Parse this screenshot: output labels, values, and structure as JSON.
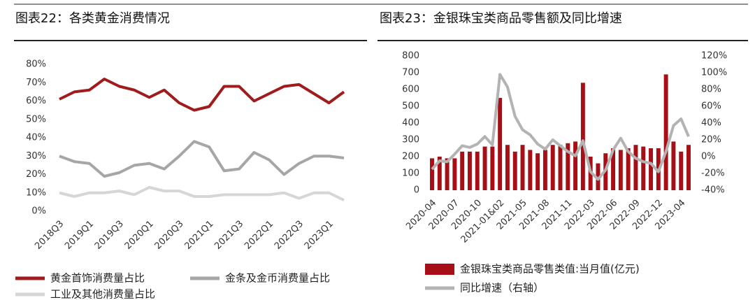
{
  "chart_data": [
    {
      "type": "line",
      "title": "图表22：各类黄金消费情况",
      "categories": [
        "2018Q3",
        null,
        "2019Q1",
        null,
        "2019Q3",
        null,
        "2020Q1",
        null,
        "2020Q3",
        null,
        "2021Q1",
        null,
        "2021Q3",
        null,
        "2022Q1",
        null,
        "2022Q3",
        null,
        "2023Q1",
        null
      ],
      "series": [
        {
          "name": "黄金首饰消费量占比",
          "color": "#a01c1c",
          "values": [
            61,
            65,
            66,
            72,
            68,
            66,
            62,
            66,
            59,
            55,
            57,
            68,
            68,
            60,
            64,
            68,
            69,
            64,
            59,
            65
          ]
        },
        {
          "name": "金条及金币消费量占比",
          "color": "#a6a6a6",
          "values": [
            30,
            27,
            26,
            19,
            21,
            25,
            26,
            23,
            30,
            38,
            35,
            22,
            23,
            32,
            28,
            20,
            26,
            30,
            30,
            29
          ]
        },
        {
          "name": "工业及其他消费量占比",
          "color": "#d6d6d6",
          "values": [
            10,
            8,
            10,
            10,
            11,
            9,
            13,
            11,
            11,
            8,
            8,
            9,
            9,
            9,
            9,
            10,
            7,
            10,
            10,
            6
          ]
        }
      ],
      "ylim": [
        0,
        80
      ],
      "yticks": [
        {
          "value": 0,
          "label": "0%"
        },
        {
          "value": 10,
          "label": "10%"
        },
        {
          "value": 20,
          "label": "20%"
        },
        {
          "value": 30,
          "label": "30%"
        },
        {
          "value": 40,
          "label": "40%"
        },
        {
          "value": 50,
          "label": "50%"
        },
        {
          "value": 60,
          "label": "60%"
        },
        {
          "value": 70,
          "label": "70%"
        },
        {
          "value": 80,
          "label": "80%"
        }
      ]
    },
    {
      "type": "bar",
      "title": "图表23：金银珠宝类商品零售额及同比增速",
      "categories": [
        "2020-04",
        null,
        null,
        "2020-07",
        null,
        null,
        "2020-10",
        null,
        null,
        "2021-01&02",
        null,
        null,
        "2021-05",
        null,
        null,
        "2021-08",
        null,
        null,
        "2021-11",
        null,
        null,
        "2022-03",
        null,
        null,
        "2022-06",
        null,
        null,
        "2022-09",
        null,
        null,
        "2022-12",
        null,
        null,
        "2023-04",
        null
      ],
      "series": [
        {
          "name": "金银珠宝类商品零售类值:当月值(亿元)",
          "type": "bar",
          "color": "#a50f15",
          "values": [
            190,
            200,
            190,
            190,
            230,
            230,
            230,
            260,
            260,
            550,
            270,
            230,
            270,
            240,
            220,
            240,
            270,
            270,
            280,
            290,
            640,
            200,
            160,
            220,
            250,
            240,
            250,
            270,
            260,
            250,
            250,
            690,
            290,
            230,
            270
          ]
        },
        {
          "name": "同比增速（右轴）",
          "type": "line",
          "axis": "y2",
          "color": "#b3b3b3",
          "values": [
            -15,
            -5,
            -6,
            3,
            13,
            11,
            15,
            24,
            14,
            98,
            83,
            48,
            32,
            26,
            15,
            9,
            20,
            13,
            6,
            1,
            19,
            -18,
            -27,
            -16,
            8,
            22,
            6,
            -2,
            -6,
            -8,
            -18,
            6,
            37,
            45,
            24
          ]
        }
      ],
      "ylim": [
        0,
        800
      ],
      "yticks": [
        0,
        100,
        200,
        300,
        400,
        500,
        600,
        700,
        800
      ],
      "y2lim": [
        -40,
        120
      ],
      "y2ticks": [
        {
          "value": -40,
          "label": "-40%"
        },
        {
          "value": -20,
          "label": "-20%"
        },
        {
          "value": 0,
          "label": "0%"
        },
        {
          "value": 20,
          "label": "20%"
        },
        {
          "value": 40,
          "label": "40%"
        },
        {
          "value": 60,
          "label": "60%"
        },
        {
          "value": 80,
          "label": "80%"
        },
        {
          "value": 100,
          "label": "100%"
        },
        {
          "value": 120,
          "label": "120%"
        }
      ]
    }
  ]
}
